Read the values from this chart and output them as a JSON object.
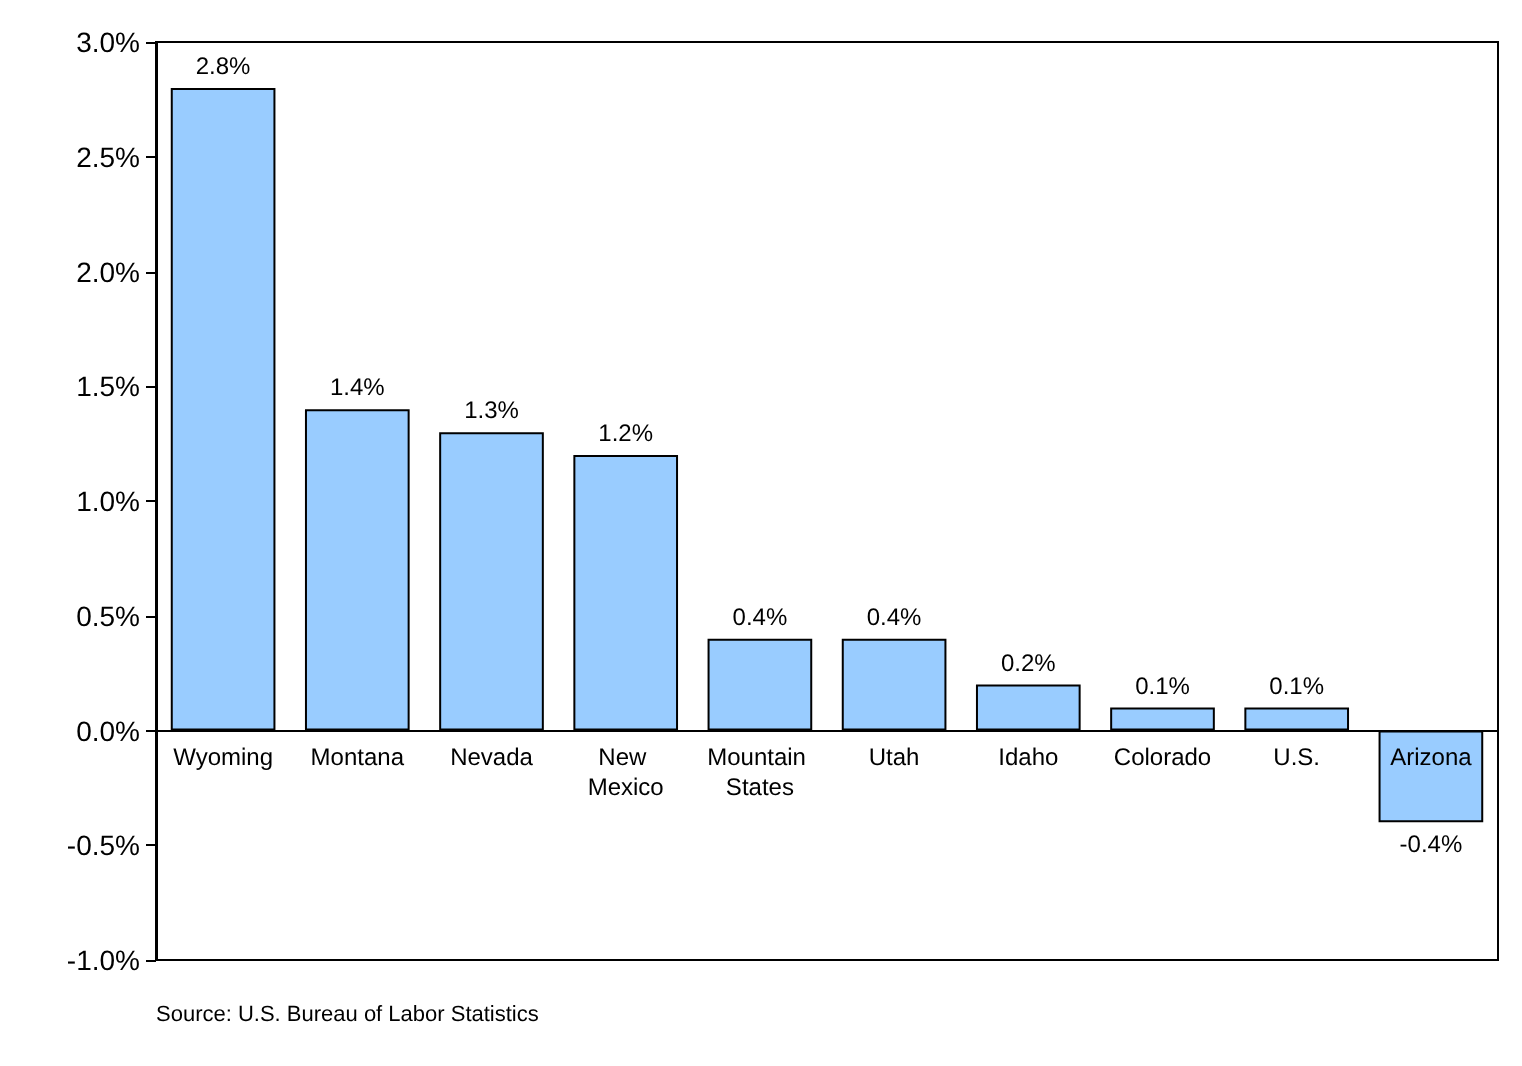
{
  "chart_data": {
    "type": "bar",
    "categories": [
      "Wyoming",
      "Montana",
      "Nevada",
      "New Mexico",
      "Mountain States",
      "Utah",
      "Idaho",
      "Colorado",
      "U.S.",
      "Arizona"
    ],
    "values": [
      2.8,
      1.4,
      1.3,
      1.2,
      0.4,
      0.4,
      0.2,
      0.1,
      0.1,
      -0.4
    ],
    "value_labels": [
      "2.8%",
      "1.4%",
      "1.3%",
      "1.2%",
      "0.4%",
      "0.4%",
      "0.2%",
      "0.1%",
      "0.1%",
      "-0.4%"
    ],
    "color": "#99ccff",
    "ylim": [
      -1.0,
      3.0
    ],
    "yticks": [
      {
        "value": -1.0,
        "label": "-1.0%"
      },
      {
        "value": -0.5,
        "label": "-0.5%"
      },
      {
        "value": 0,
        "label": "0.0%"
      },
      {
        "value": 0.5,
        "label": "0.5%"
      },
      {
        "value": 1.0,
        "label": "1.0%"
      },
      {
        "value": 1.5,
        "label": "1.5%"
      },
      {
        "value": 2.0,
        "label": "2.0%"
      },
      {
        "value": 2.5,
        "label": "2.5%"
      },
      {
        "value": 3.0,
        "label": "3.0%"
      }
    ],
    "grid": false,
    "annotations": [
      "Source: U.S. Bureau of Labor Statistics"
    ]
  }
}
